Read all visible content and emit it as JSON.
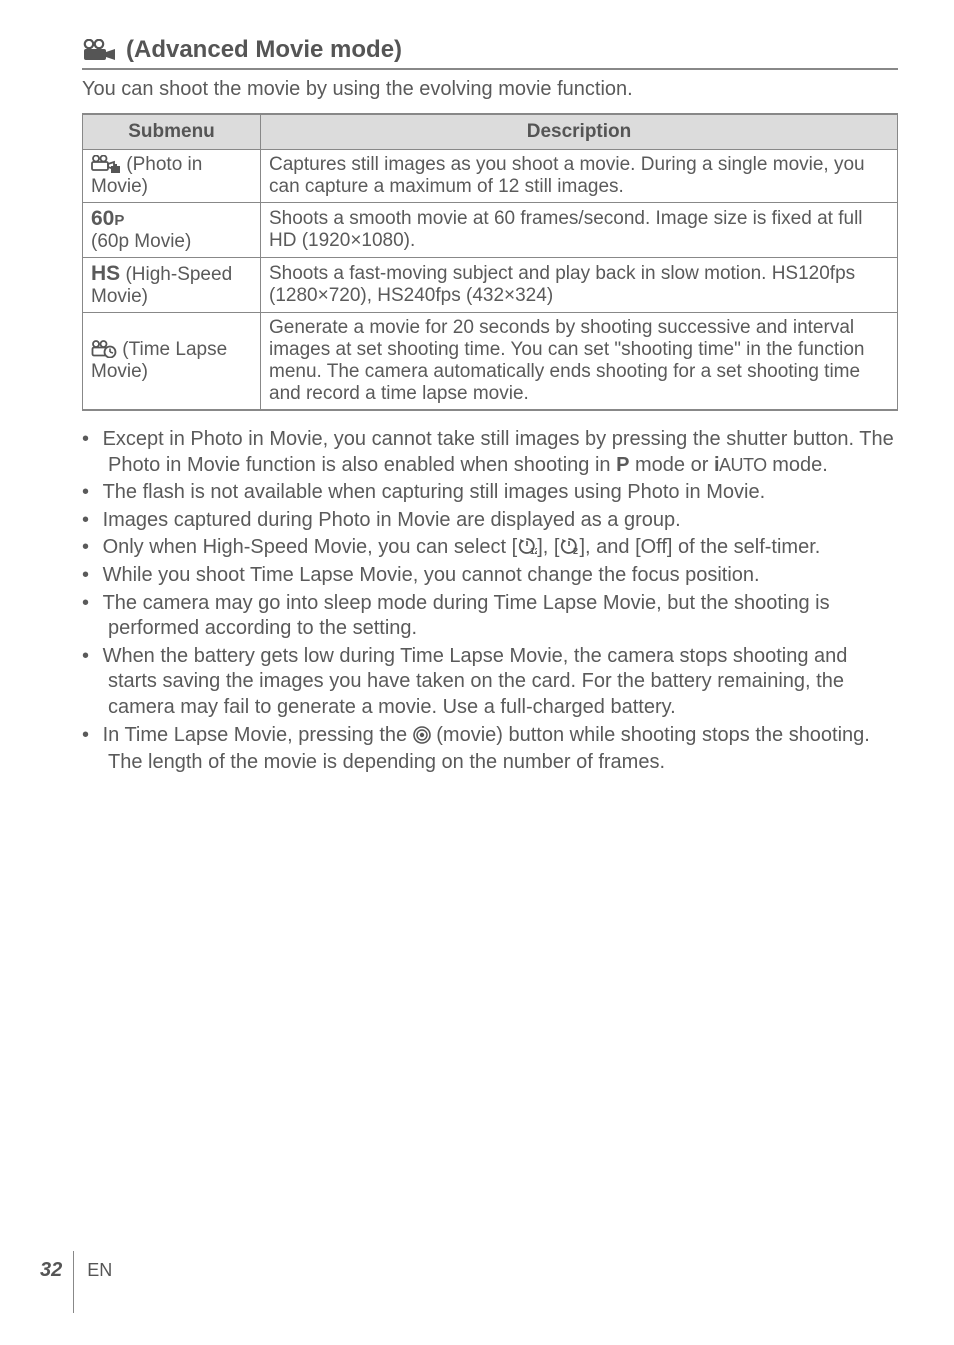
{
  "colors": {
    "text": "#5a5a5a",
    "border": "#888888",
    "th_bg": "#dcdcdc",
    "background": "#ffffff"
  },
  "heading": {
    "title": "(Advanced Movie mode)"
  },
  "intro": "You can shoot the movie by using the evolving movie function.",
  "table": {
    "headers": {
      "submenu": "Submenu",
      "description": "Description"
    },
    "rows": [
      {
        "sub_prefix_icon": "photo-in-movie-icon",
        "sub_text": " (Photo in Movie)",
        "desc": "Captures still images as you shoot a movie. During a single movie, you can capture a maximum of 12 still images."
      },
      {
        "sub_bold": "60",
        "sub_bold_suffix": "P",
        "sub_plain": "(60p Movie)",
        "desc": "Shoots a smooth movie at 60 frames/second. Image size is fixed at full HD (1920×1080)."
      },
      {
        "sub_bold": "HS",
        "sub_plain_inline": " (High-Speed Movie)",
        "desc": "Shoots a fast-moving subject and play back in slow motion. HS120fps (1280×720), HS240fps (432×324)"
      },
      {
        "sub_prefix_icon": "time-lapse-icon",
        "sub_text": " (Time Lapse Movie)",
        "desc": "Generate a movie for 20 seconds by shooting successive and interval images at set shooting time. You can set \"shooting time\" in the function menu. The camera automatically ends shooting for a set shooting time and record a time lapse movie."
      }
    ]
  },
  "bullets": [
    {
      "parts": [
        "Except in Photo in Movie, you cannot take still images by pressing the shutter button. The Photo in Movie function is also enabled when shooting in ",
        {
          "bold": "P"
        },
        " mode or ",
        {
          "iauto": true
        },
        " mode."
      ]
    },
    {
      "parts": [
        "The flash is not available when capturing still images using Photo in Movie."
      ]
    },
    {
      "parts": [
        "Images captured during Photo in Movie are displayed as a group."
      ]
    },
    {
      "parts": [
        "Only when High-Speed Movie, you can select [",
        {
          "icon": "timer12-icon"
        },
        "], [",
        {
          "icon": "timer2-icon"
        },
        "], and [Off] of the self-timer."
      ]
    },
    {
      "parts": [
        "While you shoot Time Lapse Movie, you cannot change the focus position."
      ]
    },
    {
      "parts": [
        "The camera may go into sleep mode during Time Lapse Movie, but the shooting is performed according to the setting."
      ]
    },
    {
      "parts": [
        "When the battery gets low during Time Lapse Movie, the camera stops shooting and starts saving the images you have taken on the card. For the battery remaining, the camera may fail to generate a movie. Use a full-charged battery."
      ]
    },
    {
      "parts": [
        "In Time Lapse Movie, pressing the ",
        {
          "icon": "record-button-icon"
        },
        " (movie) button while shooting stops the shooting."
      ]
    }
  ],
  "trailing_line": "The length of the movie is depending on the number of frames.",
  "footer": {
    "page": "32",
    "lang": "EN"
  }
}
